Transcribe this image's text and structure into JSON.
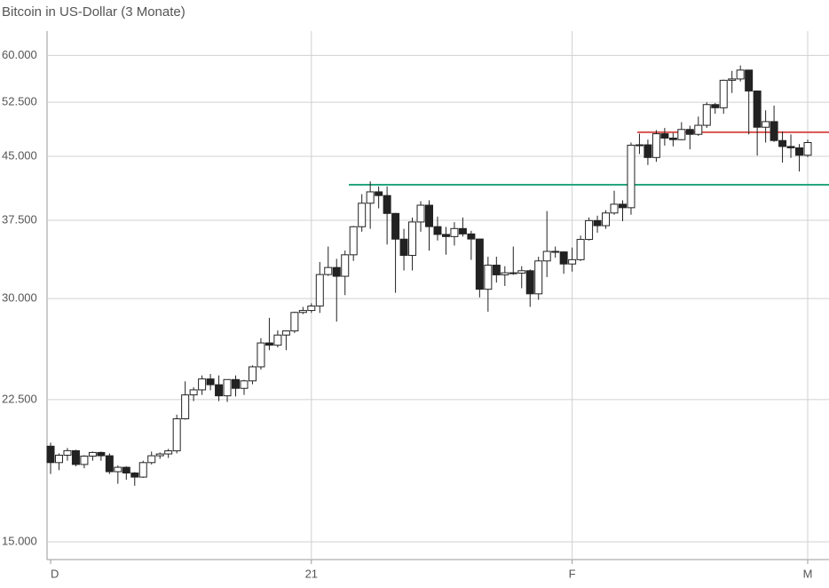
{
  "chart_data": {
    "type": "candlestick",
    "title": "Bitcoin in US-Dollar (3 Monate)",
    "log_scale": true,
    "grid": true,
    "up_color": "#ffffff",
    "down_color": "#222222",
    "ylim": [
      14260,
      64300
    ],
    "yticks": [
      {
        "value": 15000,
        "label": "15.000"
      },
      {
        "value": 22500,
        "label": "22.500"
      },
      {
        "value": 30000,
        "label": "30.000"
      },
      {
        "value": 37500,
        "label": "37.500"
      },
      {
        "value": 45000,
        "label": "45.000"
      },
      {
        "value": 52500,
        "label": "52.500"
      },
      {
        "value": 60000,
        "label": "60.000"
      }
    ],
    "categories": [
      "D",
      null,
      null,
      null,
      null,
      null,
      null,
      null,
      null,
      null,
      null,
      null,
      null,
      null,
      null,
      null,
      null,
      null,
      null,
      null,
      null,
      null,
      null,
      null,
      null,
      null,
      null,
      null,
      null,
      null,
      null,
      "21",
      null,
      null,
      null,
      null,
      null,
      null,
      null,
      null,
      null,
      null,
      null,
      null,
      null,
      null,
      null,
      null,
      null,
      null,
      null,
      null,
      null,
      null,
      null,
      null,
      null,
      null,
      null,
      null,
      null,
      null,
      "F",
      null,
      null,
      null,
      null,
      null,
      null,
      null,
      null,
      null,
      null,
      null,
      null,
      null,
      null,
      null,
      null,
      null,
      null,
      null,
      null,
      null,
      null,
      null,
      null,
      null,
      null,
      null,
      "M"
    ],
    "open": [
      19700,
      18800,
      19200,
      19450,
      18700,
      19150,
      19350,
      19170,
      18320,
      18550,
      18250,
      18040,
      18800,
      19170,
      19270,
      19440,
      21300,
      22800,
      23130,
      23860,
      23470,
      22740,
      23820,
      23230,
      23730,
      24700,
      26440,
      26270,
      27040,
      27360,
      28840,
      29000,
      29370,
      32130,
      32780,
      31970,
      33990,
      36820,
      39370,
      40670,
      40240,
      38240,
      35540,
      33930,
      37320,
      39150,
      36830,
      36020,
      35800,
      36630,
      36070,
      35550,
      30810,
      33000,
      32100,
      32290,
      32260,
      32480,
      30410,
      33400,
      34320,
      34270,
      33110,
      33520,
      35510,
      37470,
      36930,
      38290,
      39260,
      38870,
      46450,
      46500,
      44850,
      47990,
      47400,
      47190,
      48580,
      47910,
      49160,
      52150,
      51680,
      55890,
      56100,
      57540,
      54210,
      48890,
      49680,
      47070,
      46280,
      46100,
      45140
    ],
    "high": [
      19900,
      19300,
      19600,
      19500,
      19200,
      19400,
      19400,
      19300,
      18650,
      18600,
      18300,
      18900,
      19400,
      19350,
      19550,
      21550,
      23700,
      23300,
      24100,
      24200,
      24100,
      23800,
      24100,
      23800,
      24800,
      26800,
      28400,
      27400,
      27400,
      28900,
      29300,
      29600,
      33300,
      34800,
      33600,
      34400,
      36900,
      40400,
      41900,
      41300,
      41300,
      38300,
      36600,
      37800,
      39600,
      39700,
      37900,
      36800,
      37300,
      37800,
      36400,
      35600,
      33800,
      33800,
      32900,
      34800,
      32900,
      32600,
      33800,
      38500,
      34800,
      34300,
      34700,
      35900,
      37800,
      38000,
      38600,
      40800,
      39700,
      46800,
      48000,
      47200,
      48500,
      48800,
      48100,
      49600,
      49100,
      50400,
      52500,
      52400,
      56000,
      57400,
      58300,
      57600,
      54300,
      51300,
      52000,
      48300,
      47900,
      46600,
      47200
    ],
    "low": [
      18200,
      18400,
      18900,
      18600,
      18500,
      18900,
      18900,
      18200,
      17700,
      17900,
      17600,
      18000,
      18700,
      19000,
      19050,
      19300,
      21250,
      22400,
      22800,
      23100,
      22400,
      22350,
      22700,
      22800,
      23500,
      24500,
      25900,
      26100,
      25900,
      27200,
      28700,
      28800,
      28800,
      32000,
      28100,
      30300,
      33400,
      36300,
      36600,
      38800,
      35000,
      30500,
      32500,
      32500,
      36300,
      34400,
      35400,
      34000,
      34900,
      35800,
      33500,
      30100,
      28900,
      31400,
      31100,
      32100,
      30900,
      29300,
      29900,
      31900,
      33700,
      32200,
      32400,
      33400,
      35400,
      36200,
      36600,
      38100,
      37400,
      38100,
      45300,
      43900,
      44300,
      46400,
      46300,
      47100,
      45900,
      47700,
      48800,
      50800,
      50800,
      53900,
      55700,
      47900,
      45100,
      46800,
      46900,
      44200,
      44800,
      43100,
      44900
    ],
    "close": [
      18800,
      19200,
      19450,
      18700,
      19150,
      19350,
      19170,
      18320,
      18550,
      18250,
      18040,
      18800,
      19170,
      19270,
      19440,
      21300,
      22800,
      23130,
      23860,
      23470,
      22740,
      23820,
      23230,
      23730,
      24700,
      26440,
      26270,
      27040,
      27360,
      28840,
      29000,
      29370,
      32130,
      32780,
      31970,
      33990,
      36820,
      39370,
      40670,
      40240,
      38240,
      35540,
      33930,
      37320,
      39150,
      36830,
      36020,
      35800,
      36630,
      36070,
      35550,
      30810,
      33000,
      32100,
      32290,
      32260,
      32480,
      30410,
      33400,
      34320,
      34270,
      33110,
      33520,
      35510,
      37470,
      36930,
      38290,
      39260,
      38870,
      46450,
      46500,
      44850,
      47990,
      47400,
      47190,
      48580,
      47910,
      49160,
      52150,
      51680,
      55890,
      56100,
      57540,
      54210,
      48890,
      49680,
      47070,
      46280,
      46100,
      45140,
      46800
    ],
    "levels": [
      {
        "value": 41500,
        "color": "#26a67f"
      },
      {
        "value": 48200,
        "color": "#d9534f"
      }
    ]
  }
}
